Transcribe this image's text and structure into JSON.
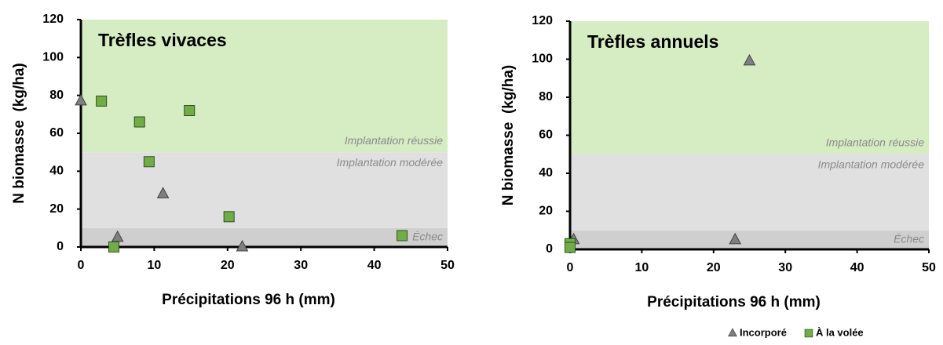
{
  "chart_data": [
    {
      "type": "scatter",
      "title": "Trèfles vivaces",
      "x_label": "Précipitations 96 h (mm)",
      "y_label": "N biomasse  (kg/ha)",
      "xlim": [
        0,
        50
      ],
      "xticks": [
        0,
        10,
        20,
        30,
        40,
        50
      ],
      "ylim": [
        0,
        120
      ],
      "yticks": [
        0,
        20,
        40,
        60,
        80,
        100,
        120
      ],
      "grid": false,
      "bands": [
        {
          "label": "Échec",
          "from": 0,
          "to": 10,
          "color": "#cfcfcf"
        },
        {
          "label": "Implantation modérée",
          "from": 10,
          "to": 50,
          "color": "#e0e0e0"
        },
        {
          "label": "Implantation réussie",
          "from": 50,
          "to": 120,
          "color": "#d6ecc3"
        }
      ],
      "series": [
        {
          "marker": "triangle",
          "color": "#7f7f7f",
          "x": [
            0,
            5,
            11.2,
            22
          ],
          "y": [
            77,
            5,
            28,
            0
          ]
        },
        {
          "marker": "square",
          "color": "#70ad47",
          "x": [
            2.8,
            4.5,
            8,
            9.3,
            14.8,
            20.2,
            43.8
          ],
          "y": [
            77,
            0,
            66,
            45,
            72,
            16,
            6
          ]
        }
      ]
    },
    {
      "type": "scatter",
      "title": "Trèfles annuels",
      "x_label": "Précipitations 96 h (mm)",
      "y_label": "N biomasse  (kg/ha)",
      "xlim": [
        0,
        50
      ],
      "xticks": [
        0,
        10,
        20,
        30,
        40,
        50
      ],
      "ylim": [
        0,
        120
      ],
      "yticks": [
        0,
        20,
        40,
        60,
        80,
        100,
        120
      ],
      "grid": false,
      "bands": [
        {
          "label": "Échec",
          "from": 0,
          "to": 10,
          "color": "#cfcfcf"
        },
        {
          "label": "Implantation modérée",
          "from": 10,
          "to": 50,
          "color": "#e0e0e0"
        },
        {
          "label": "Implantation réussie",
          "from": 50,
          "to": 120,
          "color": "#d6ecc3"
        }
      ],
      "legend": "bottom-right",
      "series": [
        {
          "name": "Incorporé",
          "marker": "triangle",
          "color": "#7f7f7f",
          "x": [
            0.5,
            23,
            25
          ],
          "y": [
            5,
            5,
            99
          ]
        },
        {
          "name": "À la volée",
          "marker": "square",
          "color": "#70ad47",
          "x": [
            0,
            0
          ],
          "y": [
            3,
            1
          ]
        }
      ]
    }
  ]
}
